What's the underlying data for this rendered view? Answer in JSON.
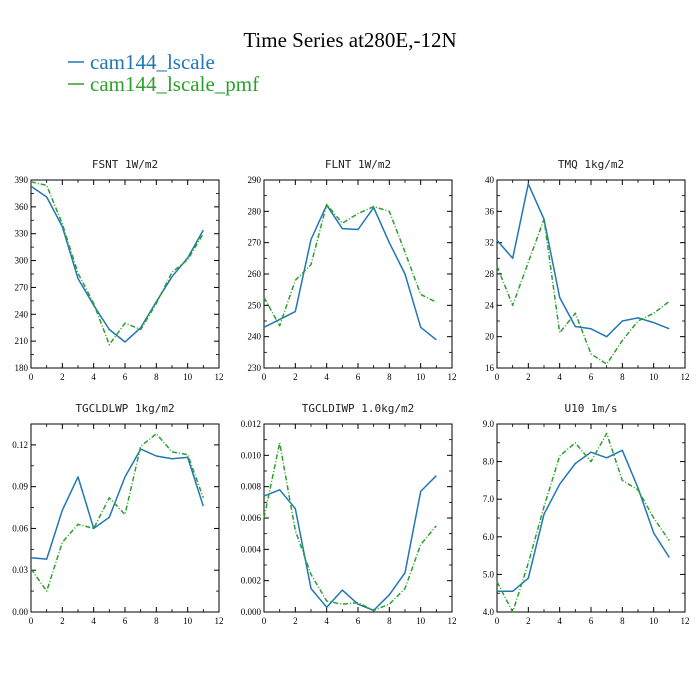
{
  "figure": {
    "title": "Time Series at280E,-12N",
    "legend": [
      {
        "label": "cam144_lscale",
        "color": "#1f77b4"
      },
      {
        "label": "cam144_lscale_pmf",
        "color": "#2ca02c"
      }
    ]
  },
  "chart_data": [
    {
      "type": "line",
      "title": "FSNT  1W/m2",
      "x": [
        0,
        1,
        2,
        3,
        4,
        5,
        6,
        7,
        8,
        9,
        10,
        11
      ],
      "xlim": [
        0,
        12
      ],
      "xticks": [
        0,
        2,
        4,
        6,
        8,
        10,
        12
      ],
      "ylim": [
        180,
        390
      ],
      "yticks": [
        180,
        210,
        240,
        270,
        300,
        330,
        360,
        390
      ],
      "ytick_labels": [
        "180",
        "210",
        "240",
        "270",
        "300",
        "330",
        "360",
        "390"
      ],
      "series": [
        {
          "name": "cam144_lscale",
          "color": "#1f77b4",
          "dash": false,
          "values": [
            383,
            371,
            338,
            280,
            250,
            223,
            209,
            225,
            254,
            282,
            303,
            334
          ]
        },
        {
          "name": "cam144_lscale_pmf",
          "color": "#2ca02c",
          "dash": true,
          "values": [
            388,
            384,
            341,
            286,
            252,
            206,
            230,
            223,
            252,
            287,
            301,
            330
          ]
        }
      ]
    },
    {
      "type": "line",
      "title": "FLNT  1W/m2",
      "x": [
        0,
        1,
        2,
        3,
        4,
        5,
        6,
        7,
        8,
        9,
        10,
        11
      ],
      "xlim": [
        0,
        12
      ],
      "xticks": [
        0,
        2,
        4,
        6,
        8,
        10,
        12
      ],
      "ylim": [
        230,
        290
      ],
      "yticks": [
        230,
        240,
        250,
        260,
        270,
        280,
        290
      ],
      "ytick_labels": [
        "230",
        "240",
        "250",
        "260",
        "270",
        "280",
        "290"
      ],
      "series": [
        {
          "name": "cam144_lscale",
          "color": "#1f77b4",
          "dash": false,
          "values": [
            243,
            245.5,
            248,
            271,
            282,
            274.5,
            274.2,
            281.2,
            270,
            260,
            243,
            239
          ]
        },
        {
          "name": "cam144_lscale_pmf",
          "color": "#2ca02c",
          "dash": true,
          "values": [
            252.5,
            243.5,
            258,
            263,
            282.2,
            276.2,
            279.3,
            281.5,
            280,
            267,
            253.5,
            251
          ]
        }
      ]
    },
    {
      "type": "line",
      "title": "TMQ  1kg/m2",
      "x": [
        0,
        1,
        2,
        3,
        4,
        5,
        6,
        7,
        8,
        9,
        10,
        11
      ],
      "xlim": [
        0,
        12
      ],
      "xticks": [
        0,
        2,
        4,
        6,
        8,
        10,
        12
      ],
      "ylim": [
        16,
        40
      ],
      "yticks": [
        16,
        20,
        24,
        28,
        32,
        36,
        40
      ],
      "ytick_labels": [
        "16",
        "20",
        "24",
        "28",
        "32",
        "36",
        "40"
      ],
      "series": [
        {
          "name": "cam144_lscale",
          "color": "#1f77b4",
          "dash": false,
          "values": [
            32.3,
            30,
            39.5,
            35,
            25,
            21.3,
            21,
            20,
            22,
            22.4,
            21.8,
            21
          ]
        },
        {
          "name": "cam144_lscale_pmf",
          "color": "#2ca02c",
          "dash": true,
          "values": [
            29,
            24,
            29.5,
            35,
            20.5,
            23,
            17.8,
            16.5,
            19.5,
            22,
            23,
            24.5
          ]
        }
      ]
    },
    {
      "type": "line",
      "title": "TGCLDLWP  1kg/m2",
      "x": [
        0,
        1,
        2,
        3,
        4,
        5,
        6,
        7,
        8,
        9,
        10,
        11
      ],
      "xlim": [
        0,
        12
      ],
      "xticks": [
        0,
        2,
        4,
        6,
        8,
        10,
        12
      ],
      "ylim": [
        0,
        0.135
      ],
      "yticks": [
        0,
        0.03,
        0.06,
        0.09,
        0.12
      ],
      "ytick_labels": [
        "0.00",
        "0.03",
        "0.06",
        "0.09",
        "0.12"
      ],
      "series": [
        {
          "name": "cam144_lscale",
          "color": "#1f77b4",
          "dash": false,
          "values": [
            0.039,
            0.038,
            0.073,
            0.097,
            0.06,
            0.068,
            0.097,
            0.117,
            0.112,
            0.11,
            0.111,
            0.076
          ]
        },
        {
          "name": "cam144_lscale_pmf",
          "color": "#2ca02c",
          "dash": true,
          "values": [
            0.031,
            0.015,
            0.05,
            0.063,
            0.06,
            0.082,
            0.07,
            0.119,
            0.128,
            0.115,
            0.113,
            0.082
          ]
        }
      ]
    },
    {
      "type": "line",
      "title": "TGCLDIWP  1.0kg/m2",
      "x": [
        0,
        1,
        2,
        3,
        4,
        5,
        6,
        7,
        8,
        9,
        10,
        11
      ],
      "xlim": [
        0,
        12
      ],
      "xticks": [
        0,
        2,
        4,
        6,
        8,
        10,
        12
      ],
      "ylim": [
        0,
        0.012
      ],
      "yticks": [
        0,
        0.002,
        0.004,
        0.006,
        0.008,
        0.01,
        0.012
      ],
      "ytick_labels": [
        "0.000",
        "0.002",
        "0.004",
        "0.006",
        "0.008",
        "0.010",
        "0.012"
      ],
      "series": [
        {
          "name": "cam144_lscale",
          "color": "#1f77b4",
          "dash": false,
          "values": [
            0.0074,
            0.0078,
            0.0066,
            0.0015,
            0.0003,
            0.0014,
            0.0005,
            0.0001,
            0.0011,
            0.0025,
            0.0077,
            0.0087
          ]
        },
        {
          "name": "cam144_lscale_pmf",
          "color": "#2ca02c",
          "dash": true,
          "values": [
            0.006,
            0.0108,
            0.0052,
            0.0024,
            0.0007,
            0.0005,
            0.0006,
            0.0001,
            0.0005,
            0.0015,
            0.0043,
            0.0055
          ]
        }
      ]
    },
    {
      "type": "line",
      "title": "U10  1m/s",
      "x": [
        0,
        1,
        2,
        3,
        4,
        5,
        6,
        7,
        8,
        9,
        10,
        11
      ],
      "xlim": [
        0,
        12
      ],
      "xticks": [
        0,
        2,
        4,
        6,
        8,
        10,
        12
      ],
      "ylim": [
        4,
        9
      ],
      "yticks": [
        4,
        5,
        6,
        7,
        8,
        9
      ],
      "ytick_labels": [
        "4.0",
        "5.0",
        "6.0",
        "7.0",
        "8.0",
        "9.0"
      ],
      "series": [
        {
          "name": "cam144_lscale",
          "color": "#1f77b4",
          "dash": false,
          "values": [
            4.55,
            4.55,
            4.9,
            6.6,
            7.4,
            7.95,
            8.25,
            8.1,
            8.3,
            7.3,
            6.1,
            5.45
          ]
        },
        {
          "name": "cam144_lscale_pmf",
          "color": "#2ca02c",
          "dash": true,
          "values": [
            4.8,
            4.0,
            5.3,
            6.8,
            8.15,
            8.5,
            8.0,
            8.75,
            7.5,
            7.25,
            6.5,
            5.9
          ]
        }
      ]
    }
  ]
}
